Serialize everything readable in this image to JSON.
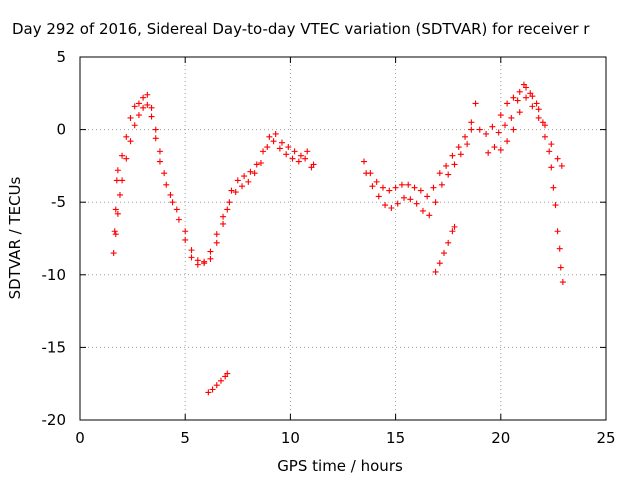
{
  "chart_data": {
    "type": "scatter",
    "title": "Day 292 of 2016, Sidereal Day-to-day VTEC variation (SDTVAR) for receiver r",
    "xlabel": "GPS time / hours",
    "ylabel": "SDTVAR / TECUs",
    "xlim": [
      0,
      25
    ],
    "ylim": [
      -20,
      5
    ],
    "x_ticks": [
      0,
      5,
      10,
      15,
      20,
      25
    ],
    "y_ticks": [
      -20,
      -15,
      -10,
      -5,
      0,
      5
    ],
    "x_tick_labels": [
      "0",
      "5",
      "10",
      "15",
      "20",
      "25"
    ],
    "y_tick_labels": [
      "-20",
      "-15",
      "-10",
      "-5",
      "0",
      "5"
    ],
    "grid": true,
    "marker": "+",
    "color": "#ff0000",
    "series": [
      {
        "values": [
          {
            "x": 1.6,
            "y": -8.5
          },
          {
            "x": 1.65,
            "y": -7.0
          },
          {
            "x": 1.7,
            "y": -5.5
          },
          {
            "x": 1.75,
            "y": -3.5
          },
          {
            "x": 1.8,
            "y": -2.8
          },
          {
            "x": 2.0,
            "y": -1.8
          },
          {
            "x": 2.2,
            "y": -0.5
          },
          {
            "x": 2.4,
            "y": 0.8
          },
          {
            "x": 2.6,
            "y": 1.6
          },
          {
            "x": 2.8,
            "y": 1.8
          },
          {
            "x": 3.0,
            "y": 2.2
          },
          {
            "x": 3.2,
            "y": 2.4
          },
          {
            "x": 3.4,
            "y": 1.5
          },
          {
            "x": 3.6,
            "y": 0.0
          },
          {
            "x": 3.8,
            "y": -1.5
          },
          {
            "x": 4.0,
            "y": -3.0
          },
          {
            "x": 4.3,
            "y": -4.5
          },
          {
            "x": 4.6,
            "y": -5.5
          },
          {
            "x": 5.0,
            "y": -7.0
          },
          {
            "x": 5.3,
            "y": -8.3
          },
          {
            "x": 5.6,
            "y": -9.0
          },
          {
            "x": 5.9,
            "y": -9.2
          },
          {
            "x": 6.2,
            "y": -8.9
          },
          {
            "x": 6.5,
            "y": -7.8
          },
          {
            "x": 6.8,
            "y": -6.5
          },
          {
            "x": 7.0,
            "y": -5.5
          },
          {
            "x": 7.2,
            "y": -4.2
          },
          {
            "x": 7.5,
            "y": -3.5
          },
          {
            "x": 7.8,
            "y": -3.2
          },
          {
            "x": 8.1,
            "y": -2.9
          },
          {
            "x": 8.4,
            "y": -2.4
          },
          {
            "x": 8.7,
            "y": -1.5
          },
          {
            "x": 9.0,
            "y": -0.5
          },
          {
            "x": 9.3,
            "y": -0.3
          },
          {
            "x": 9.6,
            "y": -0.9
          },
          {
            "x": 9.9,
            "y": -1.2
          },
          {
            "x": 10.2,
            "y": -1.5
          },
          {
            "x": 10.5,
            "y": -1.8
          },
          {
            "x": 10.8,
            "y": -1.5
          },
          {
            "x": 11.1,
            "y": -2.4
          },
          {
            "x": 13.5,
            "y": -2.2
          },
          {
            "x": 13.8,
            "y": -3.0
          },
          {
            "x": 14.1,
            "y": -3.6
          },
          {
            "x": 14.4,
            "y": -4.0
          },
          {
            "x": 14.7,
            "y": -4.2
          },
          {
            "x": 15.0,
            "y": -4.0
          },
          {
            "x": 15.3,
            "y": -3.8
          },
          {
            "x": 15.6,
            "y": -3.8
          },
          {
            "x": 15.9,
            "y": -4.0
          },
          {
            "x": 16.2,
            "y": -4.2
          },
          {
            "x": 16.5,
            "y": -4.6
          },
          {
            "x": 16.8,
            "y": -4.0
          },
          {
            "x": 17.1,
            "y": -3.0
          },
          {
            "x": 17.4,
            "y": -2.5
          },
          {
            "x": 17.7,
            "y": -1.8
          },
          {
            "x": 18.0,
            "y": -1.2
          },
          {
            "x": 18.3,
            "y": -0.5
          },
          {
            "x": 18.6,
            "y": 0.5
          },
          {
            "x": 18.8,
            "y": 1.8
          },
          {
            "x": 19.0,
            "y": 0.0
          },
          {
            "x": 19.3,
            "y": -0.3
          },
          {
            "x": 19.6,
            "y": 0.2
          },
          {
            "x": 19.9,
            "y": -0.2
          },
          {
            "x": 20.2,
            "y": 0.3
          },
          {
            "x": 20.5,
            "y": 0.8
          },
          {
            "x": 20.8,
            "y": 2.0
          },
          {
            "x": 21.1,
            "y": 3.1
          },
          {
            "x": 21.4,
            "y": 2.5
          },
          {
            "x": 21.7,
            "y": 1.8
          },
          {
            "x": 22.0,
            "y": 0.5
          },
          {
            "x": 22.3,
            "y": -1.5
          },
          {
            "x": 22.5,
            "y": -4.0
          },
          {
            "x": 22.7,
            "y": -7.0
          },
          {
            "x": 22.85,
            "y": -9.5
          },
          {
            "x": 22.95,
            "y": -10.5
          }
        ]
      },
      {
        "values": [
          {
            "x": 1.7,
            "y": -7.2
          },
          {
            "x": 1.8,
            "y": -5.8
          },
          {
            "x": 1.9,
            "y": -4.5
          },
          {
            "x": 2.0,
            "y": -3.5
          },
          {
            "x": 2.2,
            "y": -2.0
          },
          {
            "x": 2.4,
            "y": -0.8
          },
          {
            "x": 2.6,
            "y": 0.3
          },
          {
            "x": 2.8,
            "y": 1.0
          },
          {
            "x": 3.0,
            "y": 1.5
          },
          {
            "x": 3.2,
            "y": 1.7
          },
          {
            "x": 3.4,
            "y": 0.9
          },
          {
            "x": 3.6,
            "y": -0.6
          },
          {
            "x": 3.8,
            "y": -2.2
          },
          {
            "x": 4.1,
            "y": -3.8
          },
          {
            "x": 4.4,
            "y": -5.0
          },
          {
            "x": 4.7,
            "y": -6.2
          },
          {
            "x": 5.0,
            "y": -7.6
          },
          {
            "x": 5.3,
            "y": -8.8
          },
          {
            "x": 5.6,
            "y": -9.3
          },
          {
            "x": 5.9,
            "y": -9.1
          },
          {
            "x": 6.2,
            "y": -8.4
          },
          {
            "x": 6.5,
            "y": -7.2
          },
          {
            "x": 6.8,
            "y": -6.0
          },
          {
            "x": 7.1,
            "y": -5.0
          },
          {
            "x": 7.4,
            "y": -4.3
          },
          {
            "x": 7.7,
            "y": -3.9
          },
          {
            "x": 8.0,
            "y": -3.6
          },
          {
            "x": 8.3,
            "y": -3.0
          },
          {
            "x": 8.6,
            "y": -2.3
          },
          {
            "x": 8.9,
            "y": -1.2
          },
          {
            "x": 9.2,
            "y": -0.8
          },
          {
            "x": 9.5,
            "y": -1.3
          },
          {
            "x": 9.8,
            "y": -1.7
          },
          {
            "x": 10.1,
            "y": -2.0
          },
          {
            "x": 10.4,
            "y": -2.2
          },
          {
            "x": 10.7,
            "y": -2.0
          },
          {
            "x": 11.0,
            "y": -2.6
          },
          {
            "x": 13.6,
            "y": -3.0
          },
          {
            "x": 13.9,
            "y": -3.9
          },
          {
            "x": 14.2,
            "y": -4.6
          },
          {
            "x": 14.5,
            "y": -5.2
          },
          {
            "x": 14.8,
            "y": -5.4
          },
          {
            "x": 15.1,
            "y": -5.1
          },
          {
            "x": 15.4,
            "y": -4.7
          },
          {
            "x": 15.7,
            "y": -4.8
          },
          {
            "x": 16.0,
            "y": -5.1
          },
          {
            "x": 16.3,
            "y": -5.6
          },
          {
            "x": 16.6,
            "y": -5.9
          },
          {
            "x": 16.9,
            "y": -5.0
          },
          {
            "x": 17.2,
            "y": -3.8
          },
          {
            "x": 17.5,
            "y": -3.1
          },
          {
            "x": 17.8,
            "y": -2.4
          },
          {
            "x": 18.1,
            "y": -1.7
          },
          {
            "x": 18.4,
            "y": -1.0
          },
          {
            "x": 18.6,
            "y": 0.0
          },
          {
            "x": 19.4,
            "y": -1.6
          },
          {
            "x": 19.7,
            "y": -1.2
          },
          {
            "x": 20.0,
            "y": -1.4
          },
          {
            "x": 20.3,
            "y": -0.8
          },
          {
            "x": 20.6,
            "y": 0.0
          },
          {
            "x": 20.9,
            "y": 1.2
          },
          {
            "x": 21.2,
            "y": 2.2
          },
          {
            "x": 21.5,
            "y": 1.6
          },
          {
            "x": 21.8,
            "y": 0.8
          },
          {
            "x": 22.1,
            "y": -0.5
          },
          {
            "x": 22.4,
            "y": -2.6
          },
          {
            "x": 22.6,
            "y": -5.2
          },
          {
            "x": 22.8,
            "y": -8.2
          }
        ]
      },
      {
        "values": [
          {
            "x": 6.1,
            "y": -18.1
          },
          {
            "x": 6.3,
            "y": -17.9
          },
          {
            "x": 6.5,
            "y": -17.6
          },
          {
            "x": 6.7,
            "y": -17.3
          },
          {
            "x": 6.9,
            "y": -17.0
          },
          {
            "x": 7.0,
            "y": -16.8
          }
        ]
      },
      {
        "values": [
          {
            "x": 16.9,
            "y": -9.8
          },
          {
            "x": 17.1,
            "y": -9.2
          },
          {
            "x": 17.3,
            "y": -8.5
          },
          {
            "x": 17.5,
            "y": -7.8
          },
          {
            "x": 17.7,
            "y": -7.0
          },
          {
            "x": 17.8,
            "y": -6.7
          }
        ]
      },
      {
        "values": [
          {
            "x": 20.0,
            "y": 1.0
          },
          {
            "x": 20.3,
            "y": 1.8
          },
          {
            "x": 20.6,
            "y": 2.2
          },
          {
            "x": 20.9,
            "y": 2.6
          },
          {
            "x": 21.2,
            "y": 2.9
          },
          {
            "x": 21.5,
            "y": 2.3
          },
          {
            "x": 21.8,
            "y": 1.4
          },
          {
            "x": 22.1,
            "y": 0.3
          },
          {
            "x": 22.4,
            "y": -1.0
          },
          {
            "x": 22.7,
            "y": -2.0
          },
          {
            "x": 22.9,
            "y": -2.5
          }
        ]
      }
    ]
  }
}
